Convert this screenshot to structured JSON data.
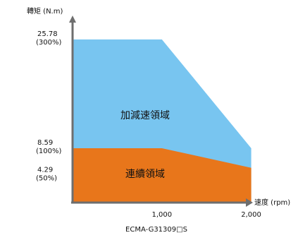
{
  "chart_data": {
    "type": "area",
    "ylabel": "轉矩 (N.m)",
    "xlabel": "速度 (rpm)",
    "model": "ECMA-G31309□S",
    "x_ticks": [
      {
        "value": 1000,
        "label": "1,000"
      },
      {
        "value": 2000,
        "label": "2,000"
      }
    ],
    "y_ticks": [
      {
        "value": 25.78,
        "label": "25.78",
        "sublabel": "(300%)"
      },
      {
        "value": 8.59,
        "label": "8.59",
        "sublabel": "(100%)"
      },
      {
        "value": 4.29,
        "label": "4.29",
        "sublabel": "(50%)"
      }
    ],
    "xlim": [
      0,
      2200
    ],
    "ylim": [
      0,
      29
    ],
    "series": [
      {
        "name": "加減速領域",
        "color": "#78c5f0",
        "points": [
          [
            0,
            25.78
          ],
          [
            1000,
            25.78
          ],
          [
            2000,
            8.59
          ],
          [
            2000,
            0
          ],
          [
            0,
            0
          ]
        ]
      },
      {
        "name": "連續領域",
        "color": "#e8761b",
        "points": [
          [
            0,
            8.59
          ],
          [
            1000,
            8.59
          ],
          [
            2000,
            5.5
          ],
          [
            2000,
            0
          ],
          [
            0,
            0
          ]
        ]
      }
    ],
    "axis_color": "#6e6e6e"
  }
}
